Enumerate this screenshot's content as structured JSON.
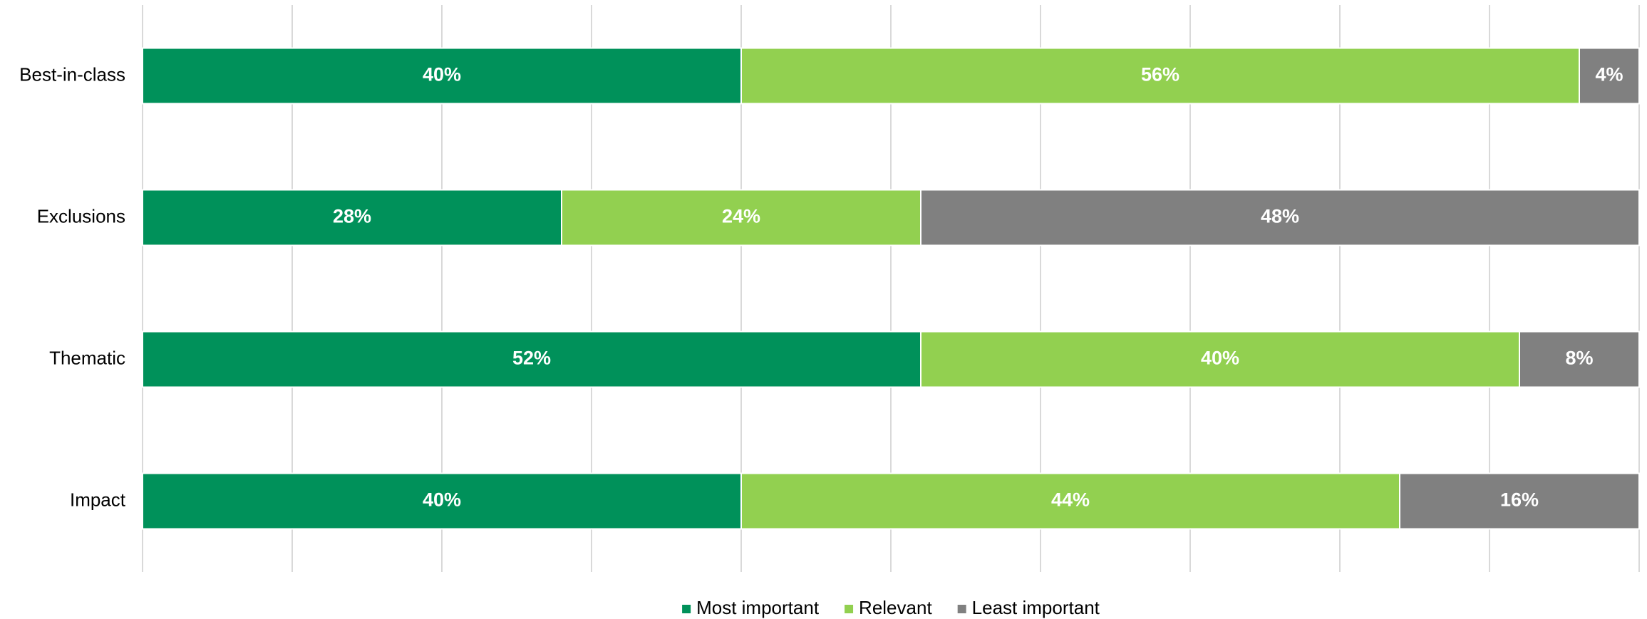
{
  "chart_data": {
    "type": "hbar_stacked",
    "categories": [
      "Best-in-class",
      "Exclusions",
      "Thematic",
      "Impact"
    ],
    "series": [
      {
        "name": "Most important",
        "color": "#00915a",
        "values": [
          40,
          28,
          52,
          40
        ],
        "value_labels": [
          "40%",
          "28%",
          "52%",
          "40%"
        ]
      },
      {
        "name": "Relevant",
        "color": "#92d050",
        "values": [
          56,
          24,
          40,
          44
        ],
        "value_labels": [
          "56%",
          "24%",
          "40%",
          "44%"
        ]
      },
      {
        "name": "Least important",
        "color": "#808080",
        "values": [
          4,
          48,
          8,
          16
        ],
        "value_labels": [
          "4%",
          "48%",
          "8%",
          "16%"
        ]
      }
    ],
    "xlim": [
      0,
      100
    ],
    "xticks": [
      0,
      10,
      20,
      30,
      40,
      50,
      60,
      70,
      80,
      90,
      100
    ],
    "grid": true,
    "legend": "bottom"
  }
}
